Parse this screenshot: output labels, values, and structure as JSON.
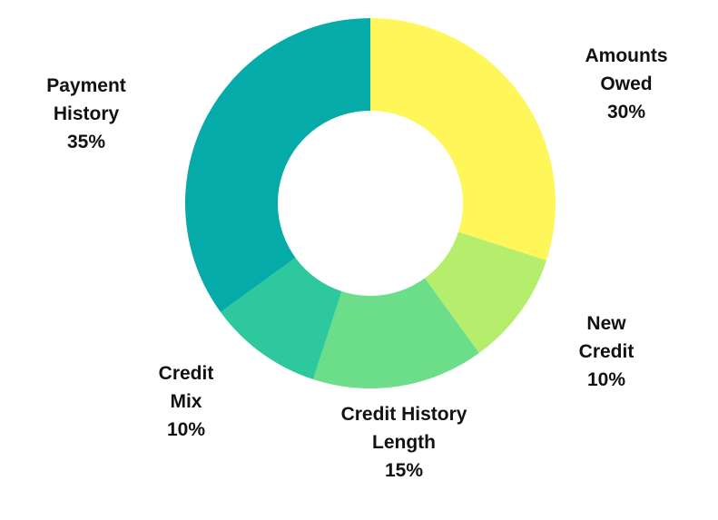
{
  "chart_data": {
    "type": "pie",
    "donut": true,
    "title": "",
    "legend": "none",
    "slices": [
      {
        "name_lines": [
          "Amounts",
          "Owed"
        ],
        "value": 30,
        "value_label": "30%",
        "color": "#FFF75A"
      },
      {
        "name_lines": [
          "New",
          "Credit"
        ],
        "value": 10,
        "value_label": "10%",
        "color": "#B5EE6C"
      },
      {
        "name_lines": [
          "Credit History",
          "Length"
        ],
        "value": 15,
        "value_label": "15%",
        "color": "#6CDD88"
      },
      {
        "name_lines": [
          "Credit",
          "Mix"
        ],
        "value": 10,
        "value_label": "10%",
        "color": "#2DC89E"
      },
      {
        "name_lines": [
          "Payment",
          "History"
        ],
        "value": 35,
        "value_label": "35%",
        "color": "#04ABA8"
      }
    ]
  }
}
